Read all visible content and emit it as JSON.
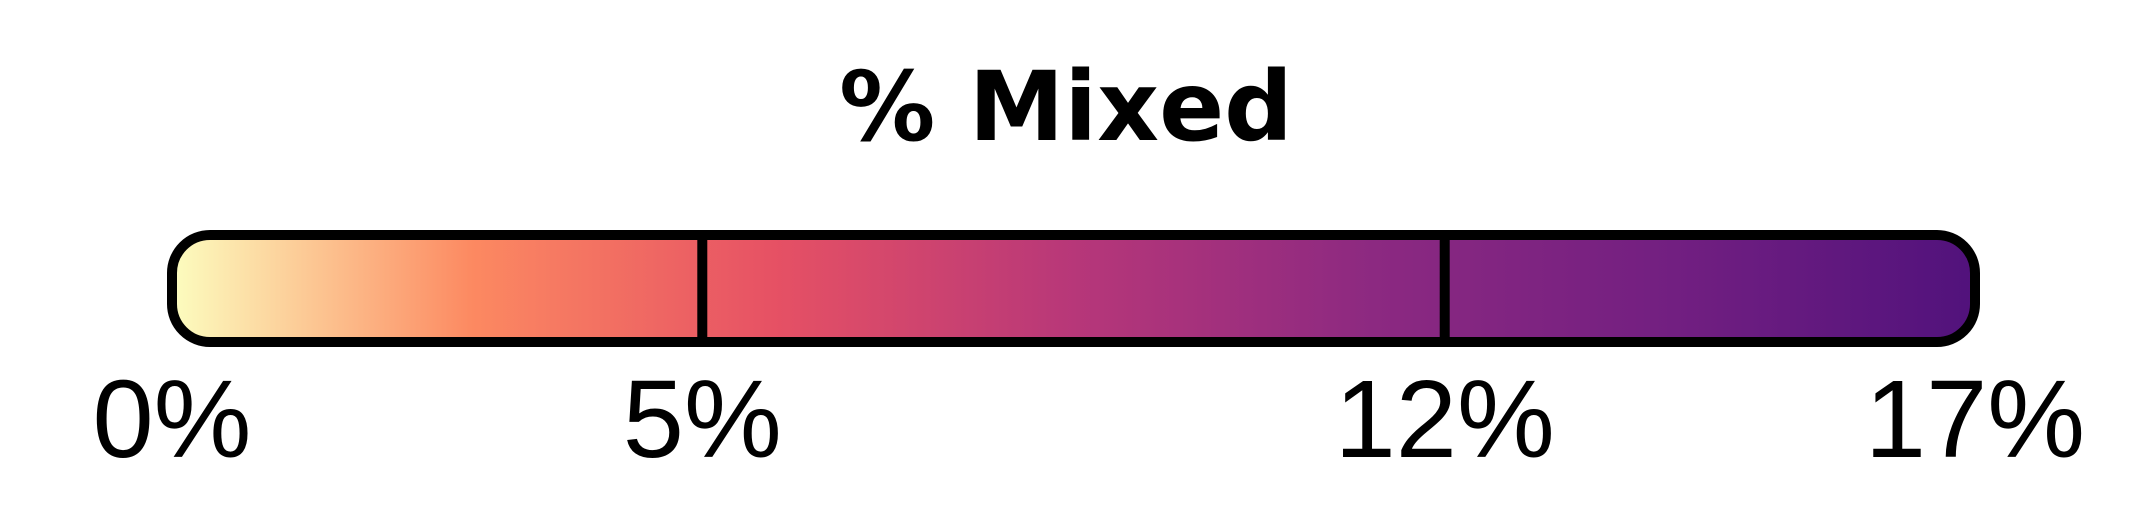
{
  "chart_data": {
    "type": "colorbar",
    "title": "% Mixed",
    "xlim": [
      0,
      17
    ],
    "boundaries": [
      0,
      5,
      12,
      17
    ],
    "tick_labels": [
      "0%",
      "5%",
      "12%",
      "17%"
    ],
    "colormap_stops": [
      "#fcfdbf",
      "#fc8961",
      "#e65164",
      "#b73779",
      "#8c2981",
      "#721f81",
      "#51127c"
    ]
  }
}
